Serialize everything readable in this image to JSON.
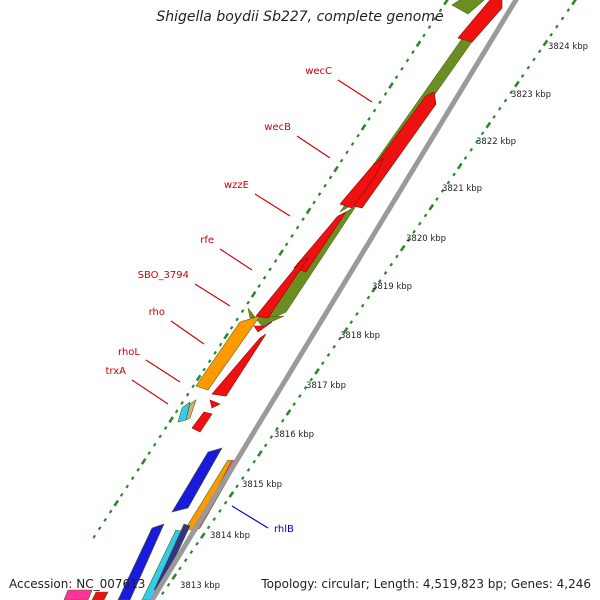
{
  "title": "Shigella boydii Sb227, complete genome",
  "footer": {
    "accession": "Accession: NC_007613",
    "summary": "Topology: circular; Length: 4,519,823 bp; Genes: 4,246"
  },
  "kbp_labels": [
    "3813 kbp",
    "3814 kbp",
    "3815 kbp",
    "3816 kbp",
    "3817 kbp",
    "3818 kbp",
    "3819 kbp",
    "3820 kbp",
    "3821 kbp",
    "3822 kbp",
    "3823 kbp",
    "3824 kbp"
  ],
  "gene_labels": [
    {
      "name": "wecC",
      "color": "#cc0000"
    },
    {
      "name": "wecB",
      "color": "#cc0000"
    },
    {
      "name": "wzzE",
      "color": "#cc0000"
    },
    {
      "name": "rfe",
      "color": "#cc0000"
    },
    {
      "name": "SBO_3794",
      "color": "#cc0000"
    },
    {
      "name": "rho",
      "color": "#cc0000"
    },
    {
      "name": "rhoL",
      "color": "#cc0000"
    },
    {
      "name": "trxA",
      "color": "#cc0000"
    },
    {
      "name": "rhlB",
      "color": "#0000cc"
    }
  ],
  "colors": {
    "forward_cds": "#6b8e23",
    "reverse_cds": "#ee1111",
    "backbone": "#9a9a9a",
    "ticks": "#2a8a2a",
    "blue_cds": "#1a1adc",
    "orange_cds": "#ff9900",
    "cyan_cds": "#33ccee",
    "pink_cds": "#ff3399"
  }
}
